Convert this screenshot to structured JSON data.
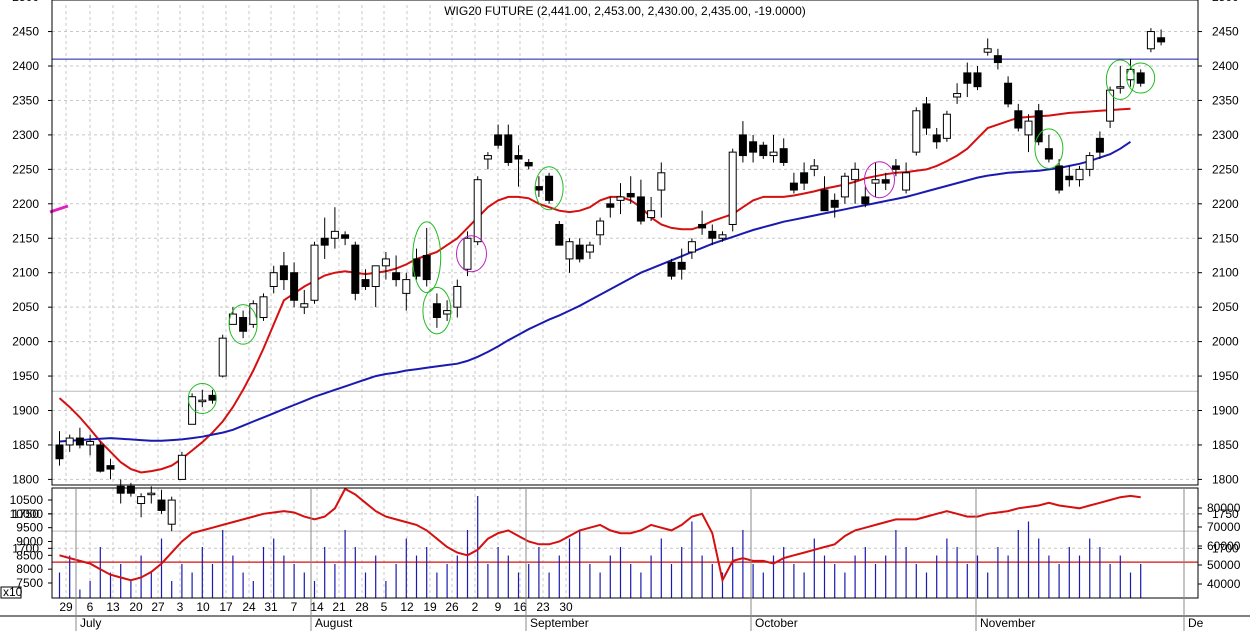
{
  "chart_data": {
    "type": "candlestick",
    "title": "WIG20 FUTURE (2,441.00, 2,453.00, 2,430.00, 2,435.00, -19.0000)",
    "price_axis": {
      "ylim": [
        1680,
        2510
      ],
      "ticks": [
        1700,
        1750,
        1800,
        1850,
        1900,
        1950,
        2000,
        2050,
        2100,
        2150,
        2200,
        2250,
        2300,
        2350,
        2400,
        2450,
        2500
      ]
    },
    "volume_axis_left": {
      "multiplier_label": "x10",
      "ticks": [
        7500,
        8000,
        8500,
        9000,
        9500,
        10000,
        10500
      ]
    },
    "volume_axis_right": {
      "ticks": [
        40000,
        50000,
        60000,
        70000,
        80000
      ]
    },
    "x_axis": {
      "day_labels": [
        "29",
        "6",
        "13",
        "20",
        "27",
        "3",
        "10",
        "17",
        "24",
        "31",
        "7",
        "14",
        "21",
        "28",
        "5",
        "12",
        "19",
        "26",
        "2",
        "9",
        "16",
        "23",
        "30"
      ],
      "month_labels": [
        "July",
        "August",
        "September",
        "October",
        "November",
        "De"
      ]
    },
    "reference_lines": {
      "blue": 2410,
      "red": 1680,
      "grey": [
        1928,
        1725
      ]
    },
    "candles": [
      [
        1850,
        1870,
        1820,
        1830
      ],
      [
        1850,
        1865,
        1840,
        1860
      ],
      [
        1860,
        1875,
        1845,
        1850
      ],
      [
        1850,
        1865,
        1835,
        1855
      ],
      [
        1850,
        1855,
        1810,
        1812
      ],
      [
        1820,
        1830,
        1800,
        1815
      ],
      [
        1790,
        1800,
        1765,
        1780
      ],
      [
        1790,
        1795,
        1775,
        1780
      ],
      [
        1765,
        1780,
        1745,
        1775
      ],
      [
        1780,
        1790,
        1765,
        1780
      ],
      [
        1770,
        1785,
        1750,
        1755
      ],
      [
        1735,
        1775,
        1725,
        1770
      ],
      [
        1800,
        1840,
        1800,
        1835
      ],
      [
        1880,
        1925,
        1880,
        1920
      ],
      [
        1915,
        1930,
        1905,
        1915
      ],
      [
        1922,
        1930,
        1910,
        1915
      ],
      [
        1950,
        2010,
        1948,
        2005
      ],
      [
        2025,
        2050,
        2025,
        2040
      ],
      [
        2035,
        2045,
        2005,
        2015
      ],
      [
        2025,
        2060,
        2020,
        2055
      ],
      [
        2035,
        2070,
        2030,
        2065
      ],
      [
        2080,
        2110,
        2070,
        2100
      ],
      [
        2110,
        2130,
        2075,
        2090
      ],
      [
        2100,
        2115,
        2050,
        2060
      ],
      [
        2050,
        2075,
        2040,
        2055
      ],
      [
        2060,
        2145,
        2055,
        2140
      ],
      [
        2150,
        2180,
        2120,
        2140
      ],
      [
        2150,
        2195,
        2135,
        2160
      ],
      [
        2155,
        2160,
        2140,
        2150
      ],
      [
        2140,
        2145,
        2060,
        2070
      ],
      [
        2090,
        2105,
        2075,
        2080
      ],
      [
        2080,
        2110,
        2050,
        2110
      ],
      [
        2110,
        2130,
        2090,
        2120
      ],
      [
        2100,
        2125,
        2080,
        2090
      ],
      [
        2070,
        2100,
        2045,
        2090
      ],
      [
        2120,
        2135,
        2090,
        2095
      ],
      [
        2125,
        2165,
        2080,
        2090
      ],
      [
        2055,
        2070,
        2020,
        2035
      ],
      [
        2040,
        2060,
        2030,
        2045
      ],
      [
        2050,
        2090,
        2035,
        2080
      ],
      [
        2105,
        2160,
        2095,
        2150
      ],
      [
        2145,
        2240,
        2140,
        2235
      ],
      [
        2265,
        2275,
        2250,
        2270
      ],
      [
        2300,
        2315,
        2280,
        2285
      ],
      [
        2300,
        2315,
        2255,
        2260
      ],
      [
        2270,
        2285,
        2225,
        2265
      ],
      [
        2260,
        2265,
        2250,
        2255
      ],
      [
        2225,
        2240,
        2210,
        2220
      ],
      [
        2240,
        2245,
        2200,
        2205
      ],
      [
        2170,
        2175,
        2140,
        2140
      ],
      [
        2120,
        2150,
        2100,
        2145
      ],
      [
        2140,
        2150,
        2115,
        2120
      ],
      [
        2130,
        2145,
        2120,
        2140
      ],
      [
        2155,
        2180,
        2140,
        2175
      ],
      [
        2200,
        2210,
        2180,
        2195
      ],
      [
        2205,
        2230,
        2185,
        2210
      ],
      [
        2215,
        2240,
        2200,
        2210
      ],
      [
        2210,
        2235,
        2170,
        2175
      ],
      [
        2180,
        2210,
        2175,
        2190
      ],
      [
        2220,
        2260,
        2180,
        2245
      ],
      [
        2115,
        2120,
        2090,
        2095
      ],
      [
        2115,
        2135,
        2090,
        2105
      ],
      [
        2130,
        2150,
        2120,
        2145
      ],
      [
        2170,
        2190,
        2155,
        2165
      ],
      [
        2160,
        2170,
        2140,
        2150
      ],
      [
        2150,
        2160,
        2145,
        2155
      ],
      [
        2170,
        2280,
        2160,
        2275
      ],
      [
        2300,
        2320,
        2260,
        2270
      ],
      [
        2290,
        2300,
        2260,
        2275
      ],
      [
        2285,
        2290,
        2265,
        2270
      ],
      [
        2270,
        2300,
        2260,
        2275
      ],
      [
        2280,
        2295,
        2255,
        2260
      ],
      [
        2230,
        2245,
        2215,
        2220
      ],
      [
        2245,
        2260,
        2220,
        2230
      ],
      [
        2250,
        2265,
        2240,
        2255
      ],
      [
        2220,
        2240,
        2190,
        2190
      ],
      [
        2205,
        2215,
        2180,
        2195
      ],
      [
        2210,
        2245,
        2200,
        2240
      ],
      [
        2235,
        2260,
        2200,
        2250
      ],
      [
        2210,
        2225,
        2195,
        2200
      ],
      [
        2230,
        2260,
        2210,
        2235
      ],
      [
        2235,
        2245,
        2220,
        2230
      ],
      [
        2255,
        2265,
        2240,
        2250
      ],
      [
        2220,
        2260,
        2215,
        2245
      ],
      [
        2275,
        2340,
        2270,
        2335
      ],
      [
        2345,
        2355,
        2300,
        2310
      ],
      [
        2300,
        2310,
        2280,
        2290
      ],
      [
        2295,
        2335,
        2290,
        2330
      ],
      [
        2355,
        2375,
        2345,
        2360
      ],
      [
        2390,
        2405,
        2355,
        2375
      ],
      [
        2390,
        2400,
        2365,
        2370
      ],
      [
        2420,
        2440,
        2415,
        2425
      ],
      [
        2415,
        2425,
        2395,
        2405
      ],
      [
        2375,
        2385,
        2340,
        2345
      ],
      [
        2335,
        2345,
        2305,
        2310
      ],
      [
        2300,
        2330,
        2275,
        2320
      ],
      [
        2335,
        2345,
        2285,
        2290
      ],
      [
        2280,
        2300,
        2260,
        2265
      ],
      [
        2255,
        2265,
        2215,
        2220
      ],
      [
        2240,
        2255,
        2225,
        2235
      ],
      [
        2235,
        2255,
        2225,
        2250
      ],
      [
        2250,
        2275,
        2240,
        2270
      ],
      [
        2295,
        2305,
        2265,
        2275
      ],
      [
        2320,
        2370,
        2310,
        2365
      ],
      [
        2370,
        2400,
        2360,
        2370
      ],
      [
        2380,
        2410,
        2370,
        2395
      ],
      [
        2390,
        2395,
        2370,
        2375
      ],
      [
        2425,
        2455,
        2420,
        2450
      ],
      [
        2441,
        2453,
        2430,
        2435
      ]
    ],
    "series": [
      {
        "name": "",
        "color": "#d41010",
        "values": [
          1918,
          1905,
          1890,
          1873,
          1855,
          1840,
          1825,
          1815,
          1810,
          1812,
          1815,
          1820,
          1830,
          1842,
          1854,
          1868,
          1884,
          1905,
          1930,
          1958,
          1990,
          2025,
          2060,
          2070,
          2080,
          2088,
          2096,
          2100,
          2102,
          2100,
          2098,
          2100,
          2102,
          2106,
          2112,
          2120,
          2125,
          2130,
          2140,
          2150,
          2165,
          2180,
          2195,
          2205,
          2210,
          2210,
          2208,
          2200,
          2195,
          2190,
          2188,
          2190,
          2195,
          2205,
          2210,
          2210,
          2205,
          2195,
          2180,
          2170,
          2165,
          2163,
          2163,
          2168,
          2175,
          2180,
          2185,
          2195,
          2205,
          2210,
          2210,
          2210,
          2212,
          2215,
          2218,
          2222,
          2225,
          2228,
          2232,
          2237,
          2240,
          2243,
          2245,
          2246,
          2248,
          2250,
          2255,
          2262,
          2270,
          2280,
          2295,
          2310,
          2315,
          2320,
          2325,
          2326,
          2327,
          2328,
          2330,
          2332,
          2333,
          2334,
          2335,
          2336,
          2337,
          2338
        ]
      },
      {
        "name": "",
        "color": "#1a1ab0",
        "values": [
          1855,
          1856,
          1857,
          1858,
          1859,
          1860,
          1859,
          1858,
          1857,
          1856,
          1856,
          1857,
          1858,
          1860,
          1862,
          1865,
          1868,
          1872,
          1878,
          1884,
          1890,
          1896,
          1902,
          1908,
          1914,
          1920,
          1925,
          1930,
          1935,
          1940,
          1945,
          1950,
          1953,
          1955,
          1958,
          1960,
          1962,
          1964,
          1966,
          1968,
          1972,
          1978,
          1985,
          1993,
          2002,
          2010,
          2018,
          2025,
          2032,
          2038,
          2045,
          2052,
          2060,
          2068,
          2076,
          2084,
          2092,
          2100,
          2106,
          2112,
          2118,
          2124,
          2130,
          2136,
          2142,
          2147,
          2152,
          2157,
          2162,
          2166,
          2170,
          2174,
          2177,
          2180,
          2183,
          2186,
          2189,
          2192,
          2195,
          2198,
          2201,
          2204,
          2207,
          2210,
          2214,
          2218,
          2222,
          2226,
          2230,
          2234,
          2238,
          2241,
          2243,
          2245,
          2246,
          2247,
          2248,
          2250,
          2252,
          2255,
          2258,
          2262,
          2267,
          2272,
          2280,
          2290
        ]
      }
    ],
    "volume": {
      "red_line": [
        8500,
        8400,
        8300,
        8200,
        8000,
        7800,
        7700,
        7600,
        7700,
        7900,
        8200,
        8600,
        9000,
        9300,
        9400,
        9500,
        9600,
        9700,
        9800,
        9900,
        10000,
        10050,
        10100,
        10050,
        9900,
        9800,
        9900,
        10200,
        10900,
        10700,
        10400,
        10100,
        9900,
        9800,
        9700,
        9600,
        9400,
        9100,
        8800,
        8600,
        8500,
        8700,
        9100,
        9300,
        9400,
        9200,
        9000,
        8900,
        8900,
        9000,
        9200,
        9400,
        9500,
        9600,
        9400,
        9300,
        9300,
        9400,
        9600,
        9500,
        9400,
        9600,
        9900,
        10000,
        9300,
        7600,
        8300,
        8400,
        8300,
        8300,
        8200,
        8400,
        8500,
        8600,
        8700,
        8800,
        8900,
        9200,
        9400,
        9500,
        9600,
        9700,
        9800,
        9800,
        9800,
        9900,
        10000,
        10100,
        10000,
        9900,
        9900,
        10000,
        10050,
        10100,
        10200,
        10250,
        10300,
        10400,
        10300,
        10250,
        10200,
        10300,
        10400,
        10500,
        10600,
        10650,
        10600
      ],
      "bars": [
        3,
        5,
        1,
        2,
        6,
        3,
        4,
        2,
        5,
        3,
        7,
        2,
        4,
        3,
        6,
        4,
        8,
        5,
        3,
        2,
        6,
        7,
        5,
        4,
        3,
        2,
        6,
        4,
        8,
        6,
        3,
        5,
        2,
        4,
        7,
        5,
        6,
        3,
        4,
        5,
        8,
        12,
        4,
        6,
        5,
        3,
        4,
        6,
        3,
        5,
        7,
        8,
        4,
        3,
        5,
        6,
        4,
        3,
        5,
        7,
        4,
        6,
        9,
        5,
        4,
        3,
        6,
        8,
        4,
        3,
        5,
        6,
        4,
        3,
        7,
        5,
        4,
        3,
        5,
        6,
        4,
        5,
        8,
        6,
        4,
        3,
        5,
        7,
        6,
        4,
        5,
        3,
        6,
        5,
        8,
        9,
        7,
        5,
        4,
        6,
        5,
        7,
        6,
        4,
        5,
        3,
        4
      ]
    },
    "annotations": {
      "green_circles": [
        14,
        18,
        36,
        37,
        48,
        97,
        104,
        106
      ],
      "magenta_circles": [
        40,
        80
      ]
    }
  }
}
